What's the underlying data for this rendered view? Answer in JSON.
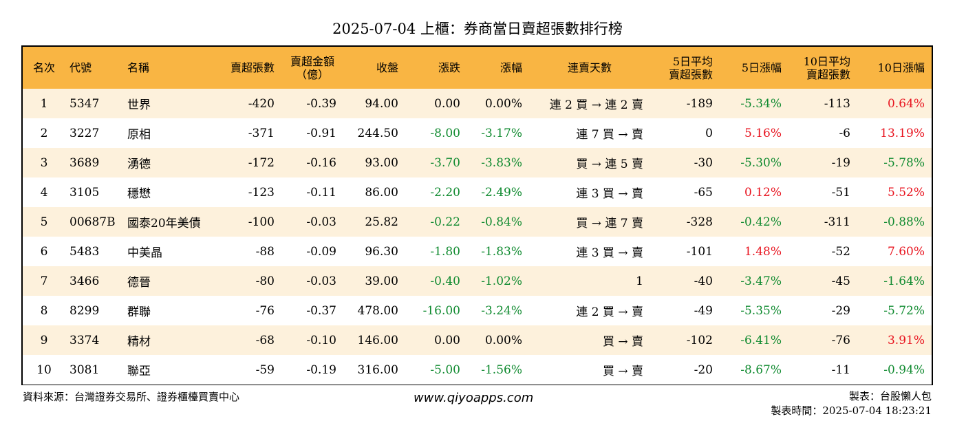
{
  "title": "2025-07-04 上櫃：券商當日賣超張數排行榜",
  "headers": {
    "rank": "名次",
    "code": "代號",
    "name": "名稱",
    "sell_qty": "賣超張數",
    "amount_l1": "賣超金額",
    "amount_l2": "（億）",
    "close": "收盤",
    "change": "漲跌",
    "pct": "漲幅",
    "streak": "連賣天數",
    "avg5_l1": "5日平均",
    "avg5_l2": "賣超張數",
    "pct5": "5日漲幅",
    "avg10_l1": "10日平均",
    "avg10_l2": "賣超張數",
    "pct10": "10日漲幅"
  },
  "rows": [
    {
      "rank": "1",
      "code": "5347",
      "name": "世界",
      "sell_qty": "-420",
      "amount": "-0.39",
      "close": "94.00",
      "change": "0.00",
      "pct": "0.00%",
      "streak": "連 2 買 → 連 2 賣",
      "avg5": "-189",
      "pct5": "-5.34%",
      "avg10": "-113",
      "pct10": "0.64%"
    },
    {
      "rank": "2",
      "code": "3227",
      "name": "原相",
      "sell_qty": "-371",
      "amount": "-0.91",
      "close": "244.50",
      "change": "-8.00",
      "pct": "-3.17%",
      "streak": "連 7 買 → 賣",
      "avg5": "0",
      "pct5": "5.16%",
      "avg10": "-6",
      "pct10": "13.19%"
    },
    {
      "rank": "3",
      "code": "3689",
      "name": "湧德",
      "sell_qty": "-172",
      "amount": "-0.16",
      "close": "93.00",
      "change": "-3.70",
      "pct": "-3.83%",
      "streak": "買 → 連 5 賣",
      "avg5": "-30",
      "pct5": "-5.30%",
      "avg10": "-19",
      "pct10": "-5.78%"
    },
    {
      "rank": "4",
      "code": "3105",
      "name": "穩懋",
      "sell_qty": "-123",
      "amount": "-0.11",
      "close": "86.00",
      "change": "-2.20",
      "pct": "-2.49%",
      "streak": "連 3 買 → 賣",
      "avg5": "-65",
      "pct5": "0.12%",
      "avg10": "-51",
      "pct10": "5.52%"
    },
    {
      "rank": "5",
      "code": "00687B",
      "name": "國泰20年美債",
      "sell_qty": "-100",
      "amount": "-0.03",
      "close": "25.82",
      "change": "-0.22",
      "pct": "-0.84%",
      "streak": "買 → 連 7 賣",
      "avg5": "-328",
      "pct5": "-0.42%",
      "avg10": "-311",
      "pct10": "-0.88%"
    },
    {
      "rank": "6",
      "code": "5483",
      "name": "中美晶",
      "sell_qty": "-88",
      "amount": "-0.09",
      "close": "96.30",
      "change": "-1.80",
      "pct": "-1.83%",
      "streak": "連 3 買 → 賣",
      "avg5": "-101",
      "pct5": "1.48%",
      "avg10": "-52",
      "pct10": "7.60%"
    },
    {
      "rank": "7",
      "code": "3466",
      "name": "德晉",
      "sell_qty": "-80",
      "amount": "-0.03",
      "close": "39.00",
      "change": "-0.40",
      "pct": "-1.02%",
      "streak": "1",
      "avg5": "-40",
      "pct5": "-3.47%",
      "avg10": "-45",
      "pct10": "-1.64%"
    },
    {
      "rank": "8",
      "code": "8299",
      "name": "群聯",
      "sell_qty": "-76",
      "amount": "-0.37",
      "close": "478.00",
      "change": "-16.00",
      "pct": "-3.24%",
      "streak": "連 2 買 → 賣",
      "avg5": "-49",
      "pct5": "-5.35%",
      "avg10": "-29",
      "pct10": "-5.72%"
    },
    {
      "rank": "9",
      "code": "3374",
      "name": "精材",
      "sell_qty": "-68",
      "amount": "-0.10",
      "close": "146.00",
      "change": "0.00",
      "pct": "0.00%",
      "streak": "買 → 賣",
      "avg5": "-102",
      "pct5": "-6.41%",
      "avg10": "-76",
      "pct10": "3.91%"
    },
    {
      "rank": "10",
      "code": "3081",
      "name": "聯亞",
      "sell_qty": "-59",
      "amount": "-0.19",
      "close": "316.00",
      "change": "-5.00",
      "pct": "-1.56%",
      "streak": "買 → 賣",
      "avg5": "-20",
      "pct5": "-8.67%",
      "avg10": "-11",
      "pct10": "-0.94%"
    }
  ],
  "colors": {
    "header_bg": "#f9b543",
    "row_alt_bg": "#fdf1dc",
    "negative": "#0f8a2f",
    "positive": "#e8131e"
  },
  "footer": {
    "source": "資料來源：台灣證券交易所、證券櫃檯買賣中心",
    "website": "www.qiyoapps.com",
    "author": "製表：台股懶人包",
    "made_time": "製表時間：2025-07-04 18:23:21"
  }
}
